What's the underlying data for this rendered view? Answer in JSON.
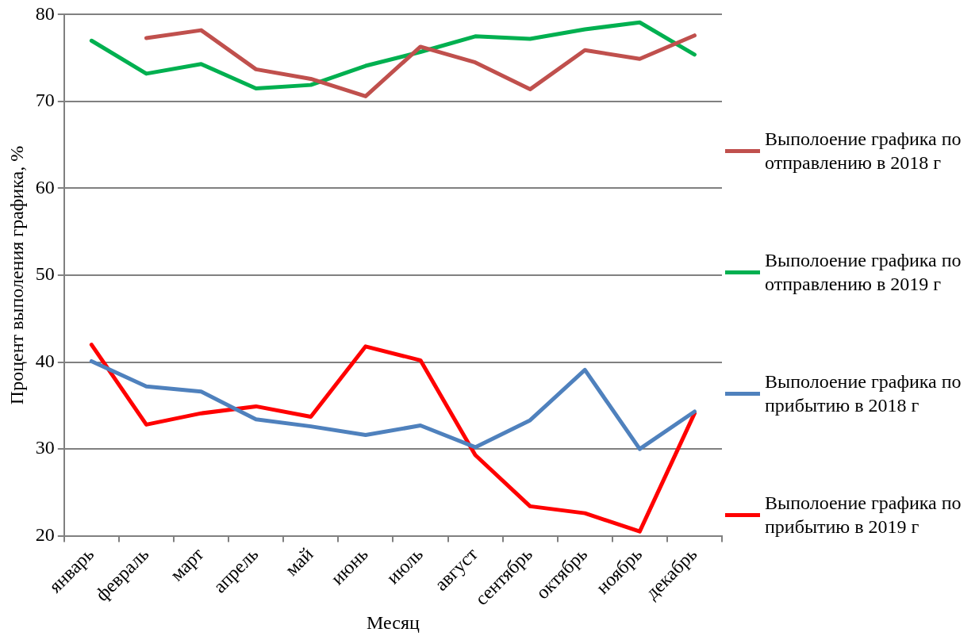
{
  "chart_data": {
    "type": "line",
    "xlabel": "Месяц",
    "ylabel": "Процент выполения графика, %",
    "categories": [
      "январь",
      "февраль",
      "март",
      "апрель",
      "май",
      "июнь",
      "июль",
      "август",
      "сентябрь",
      "октябрь",
      "ноябрь",
      "декабрь"
    ],
    "series": [
      {
        "name": "Выполоение графика по отправлению в 2018 г",
        "color": "#c0504d",
        "values": [
          null,
          77.3,
          78.2,
          73.7,
          72.6,
          70.6,
          76.3,
          74.5,
          71.4,
          75.9,
          74.9,
          77.6
        ]
      },
      {
        "name": "Выполоение графика по отправлению в 2019 г",
        "color": "#00b050",
        "values": [
          77.0,
          73.2,
          74.3,
          71.5,
          71.9,
          74.1,
          75.7,
          77.5,
          77.2,
          78.3,
          79.1,
          75.4
        ]
      },
      {
        "name": "Выполоение графика по прибытию в 2018 г",
        "color": "#4f81bd",
        "values": [
          40.1,
          37.2,
          36.6,
          33.4,
          32.6,
          31.6,
          32.7,
          30.2,
          33.3,
          39.1,
          30.0,
          34.3
        ]
      },
      {
        "name": "Выполоение графика по прибытию в 2019 г",
        "color": "#ff0000",
        "values": [
          42.0,
          32.8,
          34.1,
          34.9,
          33.7,
          41.8,
          40.2,
          29.3,
          23.4,
          22.6,
          20.5,
          34.1
        ]
      }
    ],
    "ylim": [
      20,
      80
    ],
    "yticks": [
      20,
      30,
      40,
      50,
      60,
      70,
      80
    ],
    "grid": "y",
    "legend": "right",
    "marker": "none",
    "line_style": "solid"
  }
}
